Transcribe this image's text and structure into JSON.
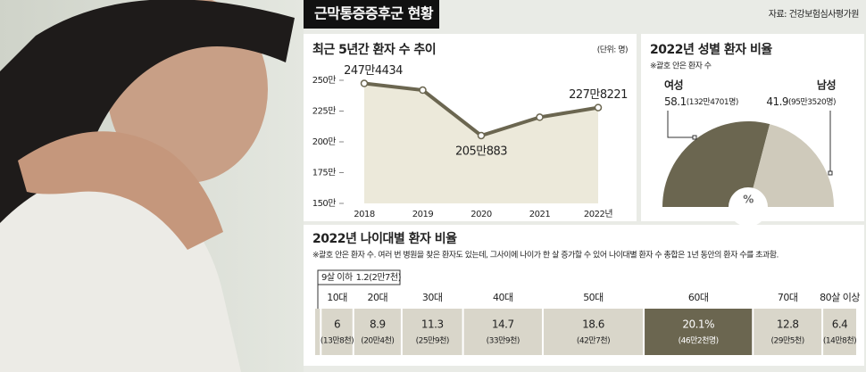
{
  "header": {
    "title": "근막통증증후군 현황",
    "source": "자료: 건강보험심사평가원"
  },
  "chart_data": [
    {
      "type": "line",
      "title": "최근 5년간 환자 수 추이",
      "unit": "(단위: 명)",
      "categories": [
        "2018",
        "2019",
        "2020",
        "2021",
        "2022년"
      ],
      "values": [
        2474434,
        2420000,
        2050883,
        2200000,
        2278221
      ],
      "value_labels": [
        "247만4434",
        null,
        "205만883",
        null,
        "227만8221"
      ],
      "color": "#6b6650",
      "area_color": "#ece9da",
      "ylim": [
        1500000,
        2500000
      ],
      "yticks": [
        {
          "value": 1500000,
          "label": "150만"
        },
        {
          "value": 1750000,
          "label": "175만"
        },
        {
          "value": 2000000,
          "label": "200만"
        },
        {
          "value": 2250000,
          "label": "225만"
        },
        {
          "value": 2500000,
          "label": "250만"
        }
      ]
    },
    {
      "type": "pie",
      "title": "2022년 성별 환자 비율",
      "subtitle": "※괄호 안은 환자 수",
      "center_label": "%",
      "categories": [
        "여성",
        "남성"
      ],
      "values": [
        58.1,
        41.9
      ],
      "sublabels": [
        "(132만4701명)",
        "(95만3520명)"
      ],
      "colors": [
        "#6b6650",
        "#cfcabb"
      ]
    },
    {
      "type": "segments",
      "title": "2022년 나이대별 환자 비율",
      "subtitle": "※괄호 안은 환자 수. 여러 번 병원을 찾은 환자도 있는데, 그사이에 나이가 한 살 증가할 수 있어 나이대별 환자 수 총합은 1년 동안의 환자 수를 초과함.",
      "categories": [
        "9살 이하",
        "10대",
        "20대",
        "30대",
        "40대",
        "50대",
        "60대",
        "70대",
        "80살 이상"
      ],
      "values": [
        1.2,
        6,
        8.9,
        11.3,
        14.7,
        18.6,
        20.1,
        12.8,
        6.4
      ],
      "value_labels": [
        "1.2",
        "6",
        "8.9",
        "11.3",
        "14.7",
        "18.6",
        "20.1%",
        "12.8",
        "6.4"
      ],
      "sublabels": [
        "(2만7천)",
        "(13만8천)",
        "(20만4천)",
        "(25만9천)",
        "(33만9천)",
        "(42만7천)",
        "(46만2천명)",
        "(29만5천)",
        "(14만8천)"
      ],
      "colors": [
        "#d9d6ca",
        "#d9d6ca",
        "#d9d6ca",
        "#d9d6ca",
        "#d9d6ca",
        "#d9d6ca",
        "#6b6650",
        "#d9d6ca",
        "#d9d6ca"
      ],
      "highlight_index": 6
    }
  ]
}
